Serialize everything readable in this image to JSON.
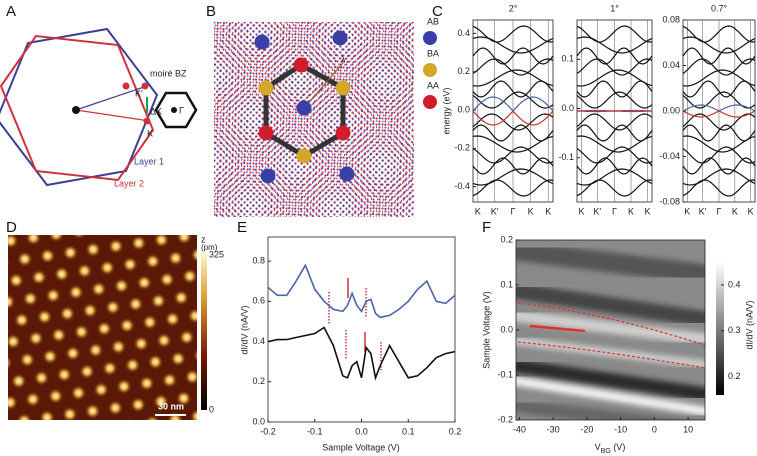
{
  "panels": {
    "a": {
      "label": "A",
      "moire_bz": "moiré BZ",
      "k_prime": "K′",
      "k": "K",
      "delta_k": "ΔK",
      "gamma": "Γ",
      "layer1": "Layer 1",
      "layer2": "Layer 2"
    },
    "b": {
      "label": "B",
      "lambda": "λ",
      "legend": [
        {
          "name": "AB",
          "color": "#3a3fa8"
        },
        {
          "name": "BA",
          "color": "#d4a62a"
        },
        {
          "name": "AA",
          "color": "#d01c2c"
        }
      ]
    },
    "c": {
      "label": "C",
      "ylabel": "energy (eV)",
      "xticks": [
        "K",
        "K′",
        "Γ",
        "K",
        "K"
      ],
      "plots": [
        {
          "title": "2°",
          "ylim": [
            -0.48,
            0.47
          ],
          "yticks": [
            0.4,
            0.2,
            {
              "value": 0,
              "label": "0.0"
            },
            -0.2,
            -0.4
          ]
        },
        {
          "title": "1°",
          "ylim": [
            -0.19,
            0.18
          ],
          "yticks": [
            0.1,
            {
              "value": 0,
              "label": "0.0"
            },
            -0.1
          ]
        },
        {
          "title": "0.7°",
          "ylim": [
            -0.08,
            0.08
          ],
          "yticks": [
            0.08,
            0.04,
            {
              "value": 0,
              "label": "0.00"
            },
            -0.04,
            -0.08
          ]
        }
      ]
    },
    "d": {
      "label": "D",
      "cbar_title": "z",
      "cbar_unit": "(pm)",
      "cbar_max": "325",
      "cbar_min": "0",
      "scale_bar": "30 nm"
    },
    "e": {
      "label": "E",
      "type": "line",
      "xlabel": "Sample Voltage (V)",
      "ylabel": "dI/dV (nA/V)",
      "xlim": [
        -0.2,
        0.2
      ],
      "ylim": [
        0,
        0.92
      ],
      "xticks": [
        -0.2,
        -0.1,
        {
          "value": 0,
          "label": "0.0"
        },
        0.1,
        0.2
      ],
      "yticks": [
        {
          "value": 0,
          "label": "0.0"
        },
        0.2,
        0.4,
        0.6,
        0.8
      ],
      "x": [
        -0.2,
        -0.18,
        -0.16,
        -0.14,
        -0.12,
        -0.1,
        -0.08,
        -0.06,
        -0.04,
        -0.03,
        -0.02,
        -0.01,
        0,
        0.01,
        0.02,
        0.03,
        0.04,
        0.06,
        0.08,
        0.1,
        0.12,
        0.14,
        0.16,
        0.18,
        0.2
      ],
      "series": [
        {
          "color": "#4a64a8",
          "values": [
            0.67,
            0.63,
            0.63,
            0.7,
            0.78,
            0.66,
            0.6,
            0.56,
            0.55,
            0.58,
            0.64,
            0.58,
            0.55,
            0.6,
            0.61,
            0.54,
            0.52,
            0.53,
            0.56,
            0.6,
            0.66,
            0.7,
            0.6,
            0.59,
            0.63
          ]
        },
        {
          "color": "#111111",
          "values": [
            0.4,
            0.41,
            0.41,
            0.42,
            0.43,
            0.44,
            0.47,
            0.38,
            0.23,
            0.22,
            0.28,
            0.3,
            0.22,
            0.37,
            0.34,
            0.22,
            0.28,
            0.38,
            0.3,
            0.22,
            0.23,
            0.27,
            0.32,
            0.34,
            0.35
          ]
        }
      ]
    },
    "f": {
      "label": "F",
      "ylabel": "Sample Voltage (V)",
      "xlabel_main": "V",
      "xlabel_sub": "BG",
      "xlabel_unit": " (V)",
      "xlim": [
        -41,
        15
      ],
      "ylim": [
        -0.2,
        0.2
      ],
      "xticks": [
        -40,
        -30,
        -20,
        -10,
        0,
        10
      ],
      "yticks": [
        0.2,
        0.1,
        {
          "value": 0,
          "label": "0.0"
        },
        -0.1,
        -0.2
      ],
      "cbar_title": "dI/dV (nA/V)",
      "cbar_lim": [
        0.16,
        0.45
      ],
      "cbar_ticks": [
        0.2,
        0.3,
        0.4
      ]
    }
  }
}
